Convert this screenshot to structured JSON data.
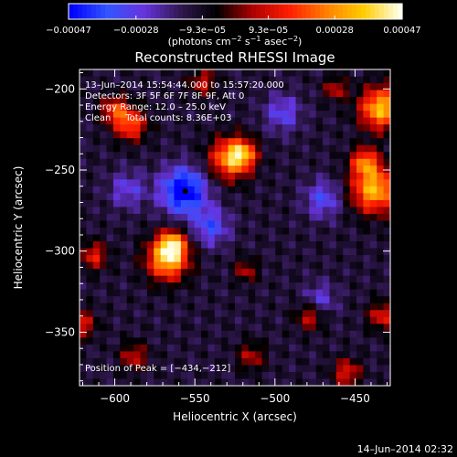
{
  "chart_data": {
    "type": "heatmap",
    "title": "Reconstructed RHESSI Image",
    "xlabel": "Heliocentric X (arcsec)",
    "ylabel": "Heliocentric Y (arcsec)",
    "xlim": [
      -622,
      -428
    ],
    "ylim": [
      -383,
      -188
    ],
    "xticks": [
      -600,
      -550,
      -500,
      -450
    ],
    "xtick_labels": [
      "−600",
      "−550",
      "−500",
      "−450"
    ],
    "yticks": [
      -200,
      -250,
      -300,
      -350
    ],
    "ytick_labels": [
      "−200",
      "−250",
      "−300",
      "−350"
    ],
    "colorbar": {
      "range": [
        -0.00047,
        0.00047
      ],
      "ticks": [
        -0.00047,
        -0.00028,
        -9.3e-05,
        9.3e-05,
        0.00028,
        0.00047
      ],
      "tick_labels": [
        "−0.00047",
        "−0.00028",
        "−9.3e−05",
        "9.3e−05",
        "0.00028",
        "0.00047"
      ],
      "unit_base": "(photons cm",
      "unit_exp1": "−2",
      "unit_mid": " s",
      "unit_exp2": "−1",
      "unit_mid2": " asec",
      "unit_exp3": "−2",
      "unit_end": ")"
    },
    "annotations": {
      "time": "13–Jun–2014 15:54:44.000 to 15:57:20.000",
      "detectors": "Detectors: 3F 5F 6F 7F 8F 9F, Att 0",
      "energy": "Energy Range: 12.0 – 25.0 keV",
      "clean": "Clean     Total counts: 8.36E+03",
      "peak": "Position of Peak = [−434,−212]"
    },
    "peak_position": [
      -434,
      -212
    ],
    "source_blobs": [
      {
        "x": -567,
        "y": -305,
        "amplitude": 0.00047,
        "sigma_arcsec": 9
      },
      {
        "x": -564,
        "y": -296,
        "amplitude": 0.00036,
        "sigma_arcsec": 6
      },
      {
        "x": -528,
        "y": -243,
        "amplitude": 0.0004,
        "sigma_arcsec": 9
      },
      {
        "x": -520,
        "y": -240,
        "amplitude": 0.0003,
        "sigma_arcsec": 6
      },
      {
        "x": -434,
        "y": -212,
        "amplitude": 0.00047,
        "sigma_arcsec": 9
      },
      {
        "x": -438,
        "y": -262,
        "amplitude": 0.00046,
        "sigma_arcsec": 10
      },
      {
        "x": -444,
        "y": -245,
        "amplitude": 0.00033,
        "sigma_arcsec": 6
      },
      {
        "x": -590,
        "y": -222,
        "amplitude": 0.00032,
        "sigma_arcsec": 7
      },
      {
        "x": -600,
        "y": -213,
        "amplitude": 0.00028,
        "sigma_arcsec": 6
      },
      {
        "x": -545,
        "y": -196,
        "amplitude": 0.0002,
        "sigma_arcsec": 6
      },
      {
        "x": -613,
        "y": -303,
        "amplitude": 0.00024,
        "sigma_arcsec": 6
      },
      {
        "x": -620,
        "y": -345,
        "amplitude": 0.00022,
        "sigma_arcsec": 6
      },
      {
        "x": -588,
        "y": -365,
        "amplitude": 0.0002,
        "sigma_arcsec": 6
      },
      {
        "x": -515,
        "y": -365,
        "amplitude": 0.00018,
        "sigma_arcsec": 6
      },
      {
        "x": -478,
        "y": -340,
        "amplitude": 0.00022,
        "sigma_arcsec": 6
      },
      {
        "x": -455,
        "y": -375,
        "amplitude": 0.00024,
        "sigma_arcsec": 6
      },
      {
        "x": -433,
        "y": -340,
        "amplitude": 0.00024,
        "sigma_arcsec": 6
      },
      {
        "x": -518,
        "y": -312,
        "amplitude": 0.00018,
        "sigma_arcsec": 5
      },
      {
        "x": -462,
        "y": -200,
        "amplitude": 0.0002,
        "sigma_arcsec": 5
      },
      {
        "x": -557,
        "y": -263,
        "amplitude": -0.0004,
        "sigma_arcsec": 10
      },
      {
        "x": -540,
        "y": -285,
        "amplitude": -0.00022,
        "sigma_arcsec": 8
      },
      {
        "x": -470,
        "y": -268,
        "amplitude": -0.0002,
        "sigma_arcsec": 8
      },
      {
        "x": -592,
        "y": -262,
        "amplitude": -0.00016,
        "sigma_arcsec": 8
      },
      {
        "x": -495,
        "y": -215,
        "amplitude": -0.00018,
        "sigma_arcsec": 8
      },
      {
        "x": -472,
        "y": -330,
        "amplitude": -0.00016,
        "sigma_arcsec": 7
      }
    ],
    "background_level": -0.00012,
    "grid_cells": 46
  },
  "footer": {
    "timestamp": "14–Jun–2014 02:32"
  },
  "colors": {
    "background": "#000000",
    "foreground": "#ffffff",
    "colormap": [
      "#0000ff",
      "#3355ff",
      "#6633dd",
      "#301850",
      "#000000",
      "#b00000",
      "#ff2000",
      "#ff8000",
      "#ffcc00",
      "#ffffe8"
    ]
  }
}
